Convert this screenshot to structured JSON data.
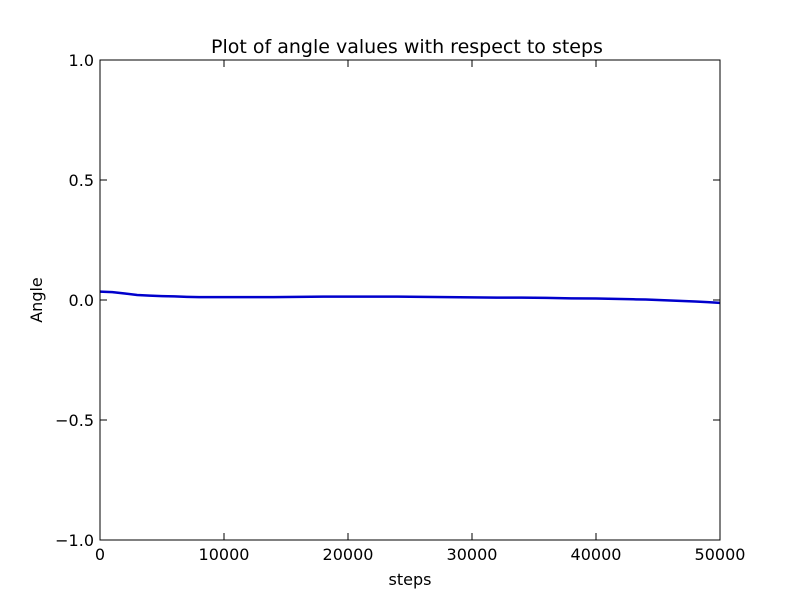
{
  "chart_data": {
    "type": "line",
    "title": "Plot of angle values with respect to steps",
    "xlabel": "steps",
    "ylabel": "Angle",
    "xlim": [
      0,
      50000
    ],
    "ylim": [
      -1.0,
      1.0
    ],
    "xticks": [
      0,
      10000,
      20000,
      30000,
      40000,
      50000
    ],
    "xtick_labels": [
      "0",
      "10000",
      "20000",
      "30000",
      "40000",
      "50000"
    ],
    "yticks": [
      1.0,
      0.5,
      0.0,
      -0.5,
      -1.0
    ],
    "ytick_labels": [
      "1.0",
      "0.5",
      "0.0",
      "−0.5",
      "−1.0"
    ],
    "grid": false,
    "legend": "none",
    "series": [
      {
        "color": "#0000cc",
        "x": [
          0,
          1000,
          2000,
          3000,
          4000,
          5000,
          6000,
          7000,
          8000,
          10000,
          12000,
          14000,
          16000,
          18000,
          20000,
          22000,
          24000,
          26000,
          28000,
          30000,
          32000,
          34000,
          36000,
          38000,
          40000,
          42000,
          43000,
          44000,
          45000,
          46000,
          47000,
          48000,
          49000,
          50000
        ],
        "y": [
          0.035,
          0.033,
          0.027,
          0.021,
          0.018,
          0.016,
          0.015,
          0.013,
          0.012,
          0.012,
          0.012,
          0.012,
          0.013,
          0.014,
          0.014,
          0.014,
          0.014,
          0.013,
          0.012,
          0.011,
          0.01,
          0.01,
          0.009,
          0.007,
          0.006,
          0.004,
          0.003,
          0.002,
          0.0,
          -0.002,
          -0.004,
          -0.006,
          -0.009,
          -0.012
        ]
      }
    ]
  }
}
